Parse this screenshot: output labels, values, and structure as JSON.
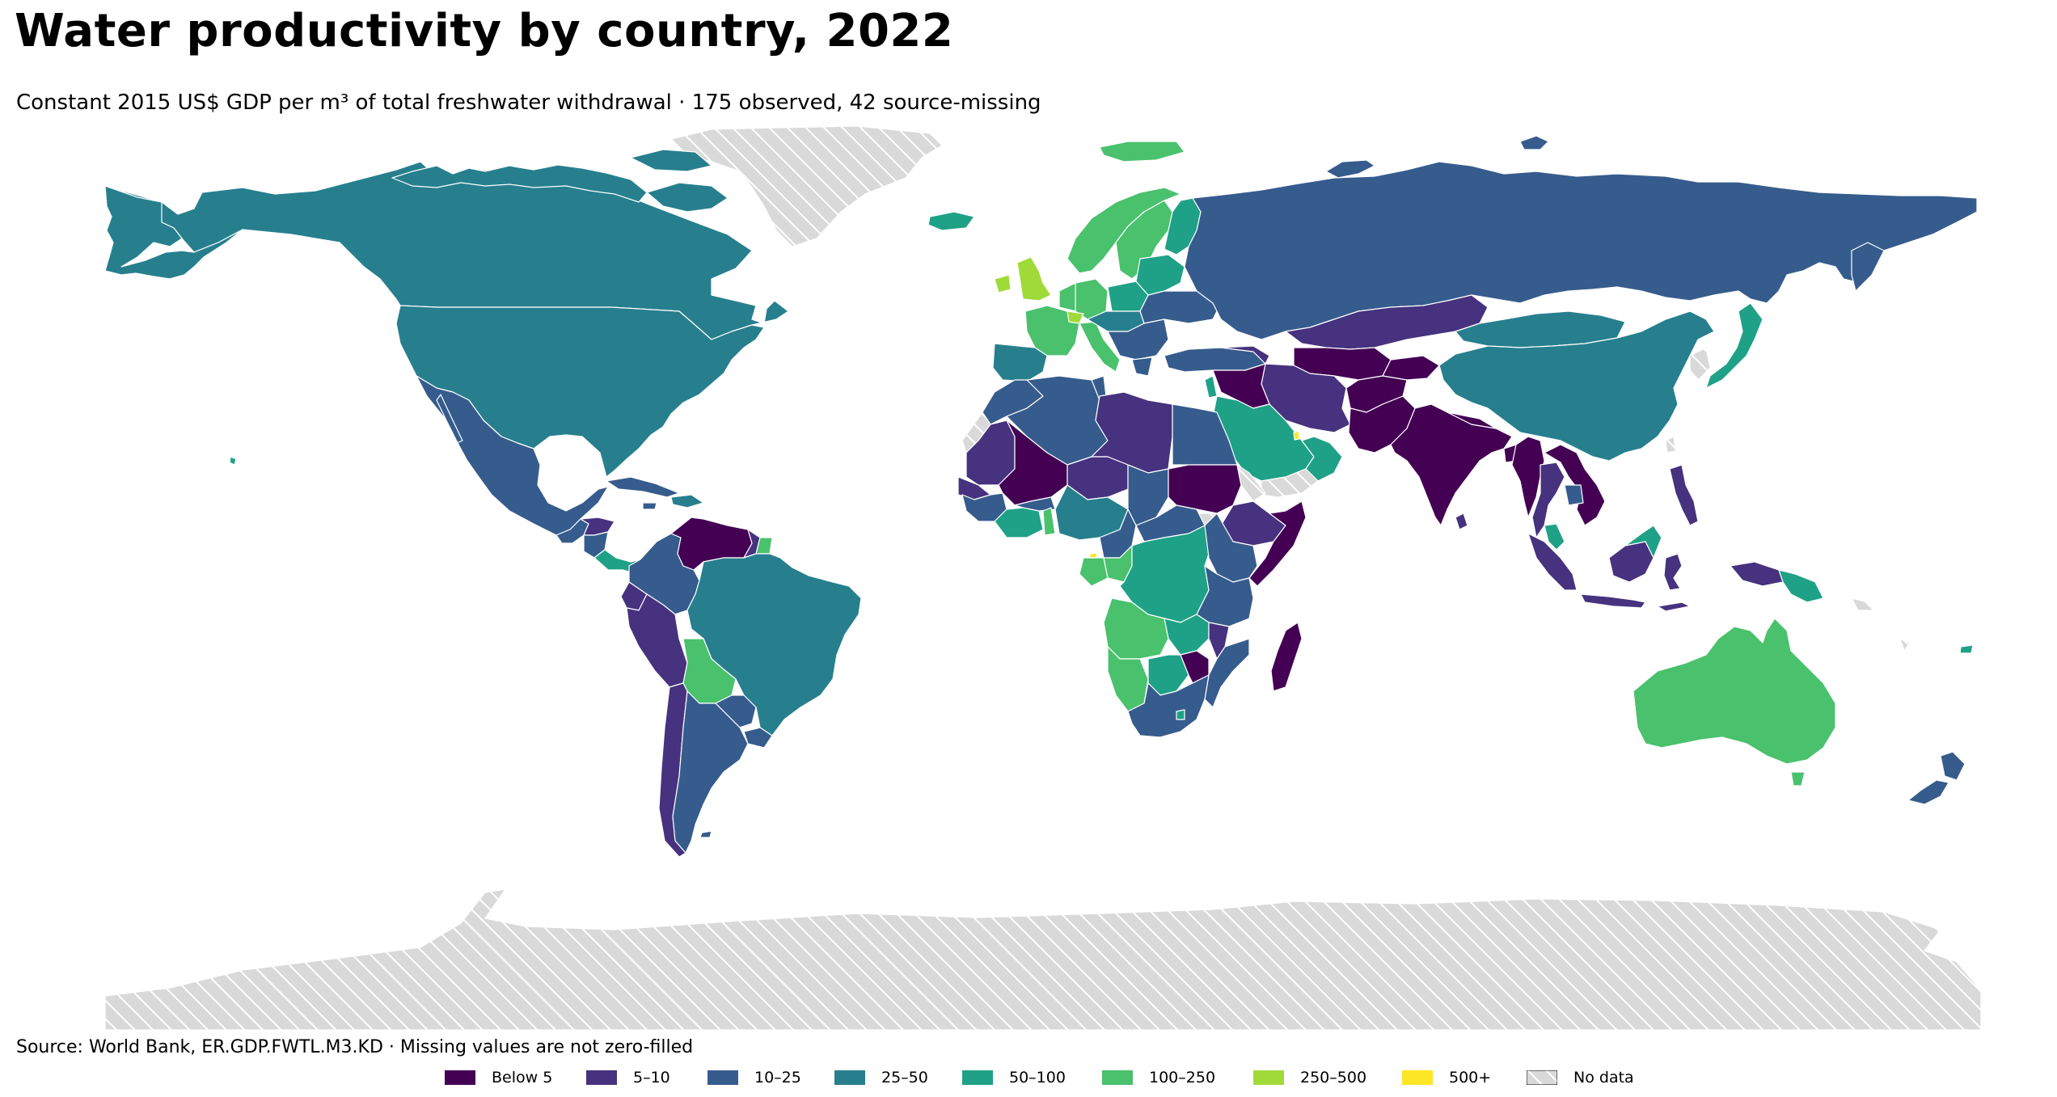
{
  "title": "Water productivity by country, 2022",
  "subtitle": "Constant 2015 US$ GDP per m³ of total freshwater withdrawal · 175 observed, 42 source-missing",
  "source": "Source: World Bank, ER.GDP.FWTL.M3.KD · Missing values are not zero-filled",
  "colors": {
    "ocean": "#ffffff",
    "nodata": "#d9d9d9",
    "hatch": "#ffffff",
    "border": "#ffffff"
  },
  "legend": [
    {
      "label": "Below 5",
      "color": "#440154"
    },
    {
      "label": "5–10",
      "color": "#46327e"
    },
    {
      "label": "10–25",
      "color": "#365c8d"
    },
    {
      "label": "25–50",
      "color": "#277f8e"
    },
    {
      "label": "50–100",
      "color": "#1fa187"
    },
    {
      "label": "100–250",
      "color": "#4ac16d"
    },
    {
      "label": "250–500",
      "color": "#a0da39"
    },
    {
      "label": "500+",
      "color": "#fde725"
    },
    {
      "label": "No data",
      "color": "hatch"
    }
  ]
}
